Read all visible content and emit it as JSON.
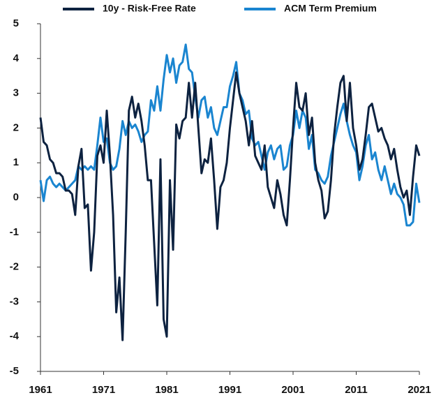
{
  "chart_data": {
    "type": "line",
    "x": [
      1961,
      1961.5,
      1962,
      1962.5,
      1963,
      1963.5,
      1964,
      1964.5,
      1965,
      1965.5,
      1966,
      1966.5,
      1967,
      1967.5,
      1968,
      1968.5,
      1969,
      1969.5,
      1970,
      1970.5,
      1971,
      1971.5,
      1972,
      1972.5,
      1973,
      1973.5,
      1974,
      1974.5,
      1975,
      1975.5,
      1976,
      1976.5,
      1977,
      1977.5,
      1978,
      1978.5,
      1979,
      1979.5,
      1980,
      1980.5,
      1981,
      1981.5,
      1982,
      1982.5,
      1983,
      1983.5,
      1984,
      1984.5,
      1985,
      1985.5,
      1986,
      1986.5,
      1987,
      1987.5,
      1988,
      1988.5,
      1989,
      1989.5,
      1990,
      1990.5,
      1991,
      1991.5,
      1992,
      1992.5,
      1993,
      1993.5,
      1994,
      1994.5,
      1995,
      1995.5,
      1996,
      1996.5,
      1997,
      1997.5,
      1998,
      1998.5,
      1999,
      1999.5,
      2000,
      2000.5,
      2001,
      2001.5,
      2002,
      2002.5,
      2003,
      2003.5,
      2004,
      2004.5,
      2005,
      2005.5,
      2006,
      2006.5,
      2007,
      2007.5,
      2008,
      2008.5,
      2009,
      2009.5,
      2010,
      2010.5,
      2011,
      2011.5,
      2012,
      2012.5,
      2013,
      2013.5,
      2014,
      2014.5,
      2015,
      2015.5,
      2016,
      2016.5,
      2017,
      2017.5,
      2018,
      2018.5,
      2019,
      2019.5,
      2020,
      2020.5,
      2021
    ],
    "series": [
      {
        "name": "10y - Risk-Free Rate",
        "color": "#0d2240",
        "values": [
          2.3,
          1.6,
          1.5,
          1.1,
          1.0,
          0.7,
          0.7,
          0.6,
          0.2,
          0.2,
          0.1,
          -0.5,
          0.9,
          1.4,
          -0.3,
          -0.2,
          -2.1,
          -1.0,
          1.2,
          1.5,
          1.0,
          2.5,
          1.2,
          -0.5,
          -3.3,
          -2.3,
          -4.1,
          -1.0,
          2.5,
          2.9,
          2.3,
          2.7,
          2.2,
          1.5,
          0.5,
          0.5,
          -1.3,
          -3.1,
          1.1,
          -3.5,
          -4.0,
          0.5,
          -1.5,
          2.1,
          1.7,
          2.2,
          2.3,
          3.3,
          2.3,
          3.3,
          2.0,
          0.7,
          1.1,
          1.0,
          1.7,
          0.5,
          -0.9,
          0.3,
          0.5,
          1.0,
          2.0,
          2.8,
          3.6,
          3.0,
          2.6,
          2.2,
          1.5,
          2.2,
          1.2,
          1.0,
          0.8,
          1.5,
          0.3,
          0.0,
          -0.3,
          0.5,
          0.1,
          -0.5,
          -0.8,
          0.5,
          2.0,
          3.3,
          2.6,
          2.5,
          3.0,
          1.8,
          2.3,
          1.0,
          0.5,
          0.2,
          -0.6,
          -0.4,
          0.5,
          1.8,
          2.6,
          3.3,
          3.5,
          2.2,
          3.3,
          2.0,
          1.5,
          0.8,
          1.1,
          1.8,
          2.6,
          2.7,
          2.3,
          1.9,
          2.0,
          1.7,
          1.5,
          1.1,
          1.4,
          0.8,
          0.3,
          0.0,
          0.2,
          -0.5,
          0.6,
          1.5,
          1.2
        ]
      },
      {
        "name": "ACM Term Premium",
        "color": "#1a85d0",
        "values": [
          0.5,
          -0.1,
          0.5,
          0.6,
          0.4,
          0.3,
          0.4,
          0.3,
          0.2,
          0.3,
          0.4,
          0.5,
          0.9,
          0.8,
          0.9,
          0.8,
          0.9,
          0.8,
          1.5,
          2.3,
          1.6,
          1.7,
          1.0,
          0.8,
          0.9,
          1.4,
          2.2,
          1.8,
          2.2,
          2.0,
          2.1,
          1.9,
          1.6,
          1.8,
          1.9,
          2.8,
          2.5,
          3.2,
          2.5,
          3.4,
          4.1,
          3.6,
          4.0,
          3.3,
          3.8,
          3.9,
          4.4,
          3.7,
          3.6,
          2.9,
          2.3,
          2.8,
          2.9,
          2.3,
          2.6,
          2.0,
          1.8,
          2.2,
          2.6,
          2.6,
          3.2,
          3.5,
          3.9,
          3.0,
          2.8,
          2.4,
          2.5,
          1.7,
          1.5,
          1.6,
          1.2,
          0.8,
          1.3,
          1.5,
          1.1,
          1.4,
          1.5,
          0.8,
          0.9,
          1.5,
          1.8,
          2.5,
          2.0,
          2.5,
          2.3,
          1.4,
          1.8,
          0.8,
          0.7,
          0.5,
          0.4,
          0.6,
          1.2,
          1.6,
          2.0,
          2.4,
          2.7,
          2.2,
          1.8,
          1.5,
          1.3,
          0.5,
          0.9,
          1.5,
          1.8,
          1.1,
          1.3,
          0.8,
          0.5,
          0.9,
          0.5,
          0.1,
          0.4,
          0.1,
          0.0,
          -0.2,
          -0.8,
          -0.8,
          -0.7,
          0.4,
          -0.15
        ]
      }
    ],
    "xlim": [
      1961,
      2021
    ],
    "xticks": [
      1961,
      1971,
      1981,
      1991,
      2001,
      2011,
      2021
    ],
    "ylim": [
      -5,
      5
    ],
    "yticks": [
      -5,
      -4,
      -3,
      -2,
      -1,
      0,
      1,
      2,
      3,
      4,
      5
    ],
    "legend": "top"
  }
}
